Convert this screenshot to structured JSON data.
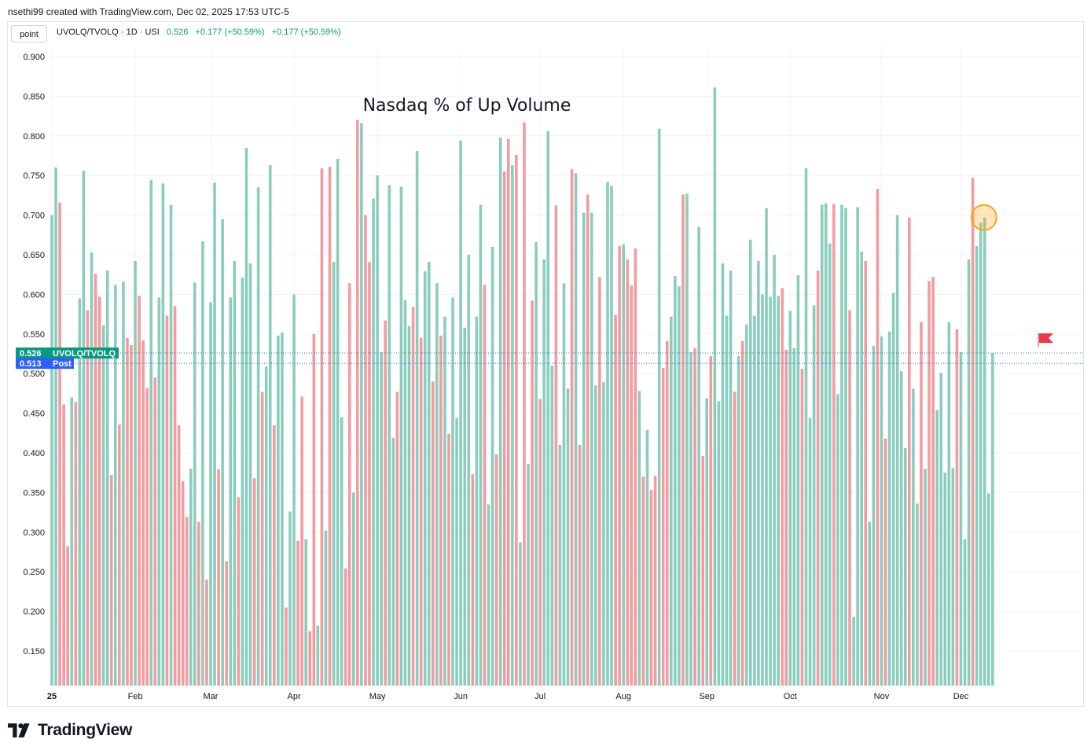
{
  "header": {
    "credit": "nsethi99 created with TradingView.com, Dec 02, 2025 17:53 UTC-5",
    "point_button": "point",
    "symbol_line": "UVOLQ/TVOLQ · 1D · USI",
    "last_value": "0.526",
    "change_1": "+0.177 (+50.59%)",
    "change_2": "+0.177 (+50.59%)"
  },
  "badges": {
    "last": {
      "value": "0.526",
      "label": "UVOLQ/TVOLQ"
    },
    "post": {
      "value": "0.513",
      "label": "Post"
    }
  },
  "footer": {
    "logo_text": "TradingView"
  },
  "colors": {
    "up": "#8acdbd",
    "down": "#f39b9f",
    "grid": "#f0f3fa",
    "badge_green": "#089981",
    "badge_blue": "#2962ff",
    "flag": "#f23645",
    "marker": "#f5a623"
  },
  "chart_data": {
    "type": "bar",
    "title": "Nasdaq % of Up Volume",
    "ylim": [
      0.1,
      0.9
    ],
    "yticks": [
      0.9,
      0.85,
      0.8,
      0.75,
      0.7,
      0.65,
      0.6,
      0.55,
      0.5,
      0.45,
      0.4,
      0.35,
      0.3,
      0.25,
      0.2,
      0.15
    ],
    "ytick_labels": [
      "0.900",
      "0.850",
      "0.800",
      "0.750",
      "0.700",
      "0.650",
      "0.600",
      "0.550",
      "0.500",
      "0.450",
      "0.400",
      "0.350",
      "0.300",
      "0.250",
      "0.200",
      "0.150"
    ],
    "xtick_labels": [
      {
        "label": "25",
        "index": 0
      },
      {
        "label": "Feb",
        "index": 21
      },
      {
        "label": "Mar",
        "index": 40
      },
      {
        "label": "Apr",
        "index": 61
      },
      {
        "label": "May",
        "index": 82
      },
      {
        "label": "Jun",
        "index": 103
      },
      {
        "label": "Jul",
        "index": 123
      },
      {
        "label": "Aug",
        "index": 144
      },
      {
        "label": "Sep",
        "index": 165
      },
      {
        "label": "Oct",
        "index": 186
      },
      {
        "label": "Nov",
        "index": 209
      },
      {
        "label": "Dec",
        "index": 229
      }
    ],
    "values": [
      0.7,
      0.76,
      0.716,
      0.461,
      0.282,
      0.47,
      0.464,
      0.595,
      0.756,
      0.58,
      0.653,
      0.626,
      0.597,
      0.561,
      0.63,
      0.372,
      0.612,
      0.436,
      0.616,
      0.545,
      0.536,
      0.642,
      0.598,
      0.542,
      0.482,
      0.744,
      0.495,
      0.596,
      0.74,
      0.573,
      0.713,
      0.585,
      0.435,
      0.364,
      0.319,
      0.38,
      0.615,
      0.313,
      0.667,
      0.24,
      0.59,
      0.741,
      0.379,
      0.695,
      0.263,
      0.596,
      0.642,
      0.344,
      0.621,
      0.785,
      0.639,
      0.368,
      0.735,
      0.477,
      0.509,
      0.763,
      0.435,
      0.548,
      0.552,
      0.205,
      0.326,
      0.6,
      0.289,
      0.471,
      0.291,
      0.175,
      0.55,
      0.182,
      0.759,
      0.302,
      0.761,
      0.641,
      0.771,
      0.445,
      0.254,
      0.614,
      0.35,
      0.82,
      0.816,
      0.7,
      0.641,
      0.721,
      0.75,
      0.527,
      0.567,
      0.738,
      0.419,
      0.477,
      0.736,
      0.593,
      0.56,
      0.584,
      0.781,
      0.545,
      0.629,
      0.641,
      0.49,
      0.614,
      0.548,
      0.572,
      0.424,
      0.596,
      0.444,
      0.794,
      0.558,
      0.65,
      0.373,
      0.572,
      0.713,
      0.612,
      0.335,
      0.66,
      0.398,
      0.798,
      0.755,
      0.796,
      0.763,
      0.776,
      0.287,
      0.817,
      0.386,
      0.592,
      0.666,
      0.468,
      0.644,
      0.806,
      0.51,
      0.712,
      0.41,
      0.614,
      0.481,
      0.758,
      0.753,
      0.41,
      0.703,
      0.726,
      0.703,
      0.485,
      0.622,
      0.489,
      0.742,
      0.737,
      0.574,
      0.661,
      0.663,
      0.644,
      0.611,
      0.658,
      0.478,
      0.37,
      0.429,
      0.353,
      0.371,
      0.809,
      0.507,
      0.541,
      0.572,
      0.623,
      0.61,
      0.726,
      0.727,
      0.527,
      0.532,
      0.685,
      0.396,
      0.469,
      0.522,
      0.861,
      0.465,
      0.639,
      0.573,
      0.63,
      0.477,
      0.522,
      0.541,
      0.562,
      0.669,
      0.573,
      0.642,
      0.6,
      0.709,
      0.597,
      0.65,
      0.598,
      0.608,
      0.53,
      0.579,
      0.532,
      0.624,
      0.506,
      0.759,
      0.444,
      0.586,
      0.63,
      0.713,
      0.715,
      0.664,
      0.714,
      0.474,
      0.713,
      0.709,
      0.58,
      0.193,
      0.71,
      0.654,
      0.642,
      0.313,
      0.535,
      0.733,
      0.547,
      0.418,
      0.553,
      0.602,
      0.7,
      0.503,
      0.406,
      0.697,
      0.481,
      0.336,
      0.565,
      0.38,
      0.617,
      0.622,
      0.454,
      0.501,
      0.375,
      0.565,
      0.381,
      0.556,
      0.527,
      0.291,
      0.644,
      0.747,
      0.661,
      0.69,
      0.697,
      0.349,
      0.526
    ],
    "directions": "UUDDDUDUUDUDDUUDUDUDDUDDDUDUUDUDDDDUUDUDUUDUDUUDUUUDUDUUDUUDUUDDUDDUDUDUUUDDUDUDDUUUDUUDUUUDUDUUDUDUDUUUUUDUUDUUDUDDUDUDUDUDUUUDUUUDUDUDUUDUUUDDUDDDUDUDDUDDUUUDUUDUDUDUUUUUDUDUUUUUUUUUDDUUUDUUUDUUUDUUUDUUUDUUDUDUUUUUDUUDUDDUUUUUDUUUDUUUUUDDDUDUUUUDUDDUUUUUUDUDUUDUUUUDDUUUUUDDUUUUUUUDUUUUUUUUUUUDUUUDUDDU",
    "last_value": 0.526,
    "post_value": 0.513
  }
}
